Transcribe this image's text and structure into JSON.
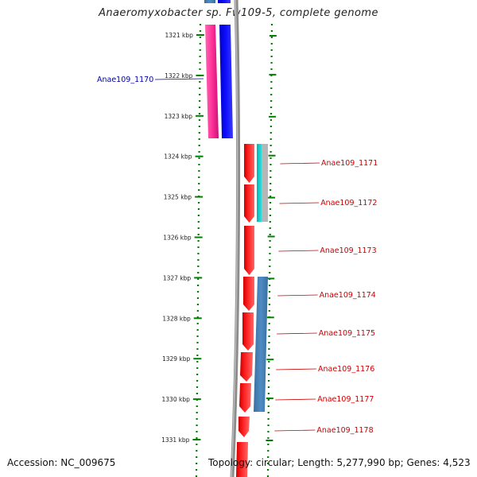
{
  "title": "Anaeromyxobacter sp. Fw109-5, complete genome",
  "footer": {
    "accession": "Accession: NC_009675",
    "topology": "Topology: circular; Length: 5,277,990 bp; Genes: 4,523"
  },
  "colors": {
    "forward_label": "#0000aa",
    "reverse_label": "#cc0000",
    "tick": "#008000",
    "backbone": "#888888",
    "cds_reverse": "#ff0000",
    "cds_forward": "#0000ff",
    "gene_pink": "#ff3399",
    "feature_cyan": "#00cccc",
    "feature_steelblue": "#4682b4"
  },
  "axis": {
    "unit": "kbp",
    "ticks": [
      {
        "kbp": 1321,
        "label": "1321 kbp"
      },
      {
        "kbp": 1322,
        "label": "1322 kbp"
      },
      {
        "kbp": 1323,
        "label": "1323 kbp"
      },
      {
        "kbp": 1324,
        "label": "1324 kbp"
      },
      {
        "kbp": 1325,
        "label": "1325 kbp"
      },
      {
        "kbp": 1326,
        "label": "1326 kbp"
      },
      {
        "kbp": 1327,
        "label": "1327 kbp"
      },
      {
        "kbp": 1328,
        "label": "1328 kbp"
      },
      {
        "kbp": 1329,
        "label": "1329 kbp"
      },
      {
        "kbp": 1330,
        "label": "1330 kbp"
      },
      {
        "kbp": 1331,
        "label": "1331 kbp"
      }
    ]
  },
  "genes": [
    {
      "name": "Anae109_1170",
      "strand": "forward",
      "start_kbp": 1321.0,
      "end_kbp": 1323.55
    },
    {
      "name": "Anae109_1171",
      "strand": "reverse",
      "start_kbp": 1323.7,
      "end_kbp": 1324.67
    },
    {
      "name": "Anae109_1172",
      "strand": "reverse",
      "start_kbp": 1324.72,
      "end_kbp": 1325.62
    },
    {
      "name": "Anae109_1173",
      "strand": "reverse",
      "start_kbp": 1325.66,
      "end_kbp": 1326.92
    },
    {
      "name": "Anae109_1174",
      "strand": "reverse",
      "start_kbp": 1326.94,
      "end_kbp": 1327.8
    },
    {
      "name": "Anae109_1175",
      "strand": "reverse",
      "start_kbp": 1327.82,
      "end_kbp": 1328.8
    },
    {
      "name": "Anae109_1176",
      "strand": "reverse",
      "start_kbp": 1328.82,
      "end_kbp": 1329.56
    },
    {
      "name": "Anae109_1177",
      "strand": "reverse",
      "start_kbp": 1329.59,
      "end_kbp": 1330.33
    },
    {
      "name": "Anae109_1178",
      "strand": "reverse",
      "start_kbp": 1330.43,
      "end_kbp": 1330.98
    }
  ]
}
